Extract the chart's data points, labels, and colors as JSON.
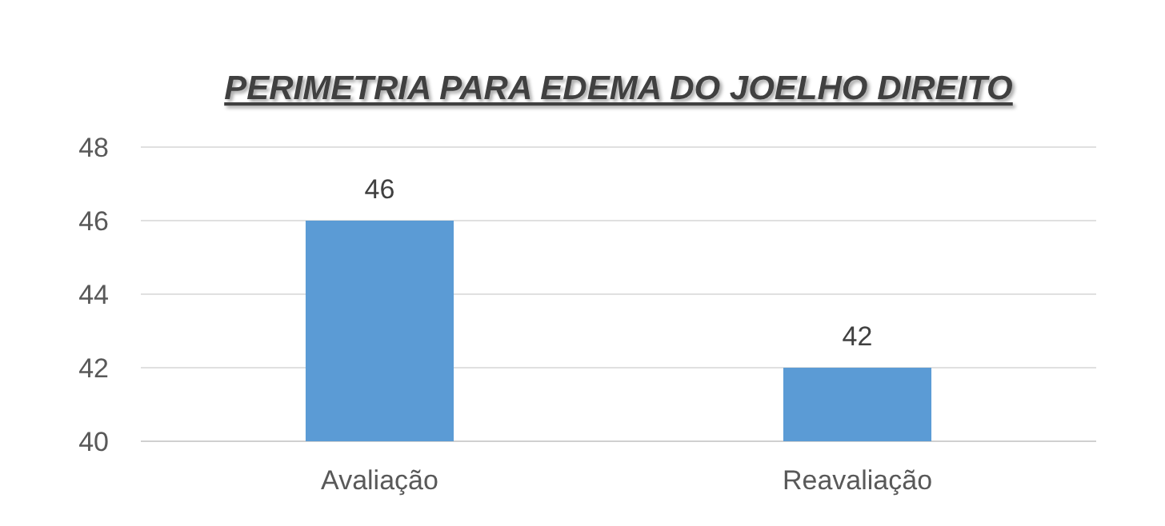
{
  "chart_data": {
    "type": "bar",
    "title": "PERIMETRIA PARA EDEMA DO JOELHO DIREITO",
    "categories": [
      "Avaliação",
      "Reavaliação"
    ],
    "values": [
      46,
      42
    ],
    "color": "#5b9bd5",
    "ylim": [
      40,
      48
    ],
    "yticks": [
      40,
      42,
      44,
      46,
      48
    ],
    "grid": "y",
    "data_labels": true
  }
}
